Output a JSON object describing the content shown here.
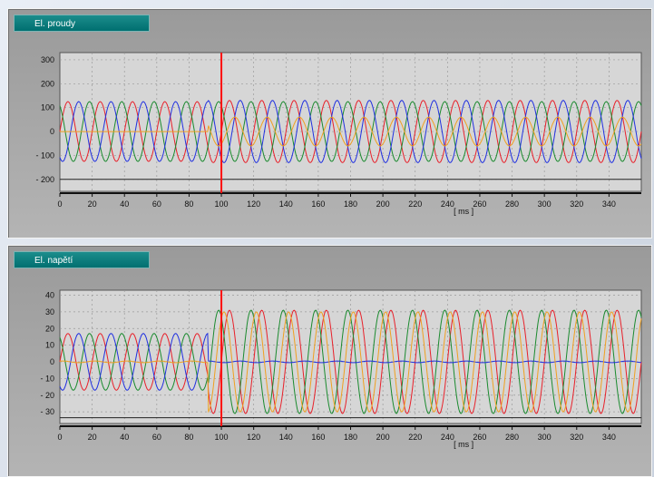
{
  "chart_data": [
    {
      "type": "line",
      "title": "El. proudy",
      "xlabel": "[ ms ]",
      "ylabel": "",
      "xlim": [
        0,
        360
      ],
      "ylim": [
        -250,
        330
      ],
      "x_ticks": [
        0,
        20,
        40,
        60,
        80,
        100,
        120,
        140,
        160,
        180,
        200,
        220,
        240,
        260,
        280,
        300,
        320,
        340
      ],
      "y_ticks": [
        300,
        200,
        100,
        0,
        -100,
        -200
      ],
      "y_tick_labels": [
        "300",
        "200",
        "100",
        "0",
        "- 100",
        "- 200"
      ],
      "marker_x": 100,
      "reference_line_y": -200,
      "grid": true,
      "series": [
        {
          "color": "#e8202a",
          "pre_amp": 125,
          "post_amp": 130,
          "phase_deg": 0
        },
        {
          "color": "#1a8a2e",
          "pre_amp": 125,
          "post_amp": 125,
          "phase_deg": 120
        },
        {
          "color": "#2030e0",
          "pre_amp": 125,
          "post_amp": 130,
          "phase_deg": 240
        },
        {
          "color": "#f0a020",
          "pre_amp": 0,
          "post_amp": 60,
          "phase_deg": 300
        }
      ]
    },
    {
      "type": "line",
      "title": "El. napětí",
      "xlabel": "[ ms ]",
      "ylabel": "",
      "xlim": [
        0,
        360
      ],
      "ylim": [
        -37,
        43
      ],
      "x_ticks": [
        0,
        20,
        40,
        60,
        80,
        100,
        120,
        140,
        160,
        180,
        200,
        220,
        240,
        260,
        280,
        300,
        320,
        340
      ],
      "y_ticks": [
        40,
        30,
        20,
        10,
        0,
        -10,
        -20,
        -30
      ],
      "y_tick_labels": [
        "40",
        "30",
        "20",
        "10",
        "0",
        "- 10",
        "- 20",
        "- 30"
      ],
      "marker_x": 100,
      "reference_line_y": -33.5,
      "grid": true,
      "series": [
        {
          "color": "#e8202a",
          "pre_amp": 17,
          "post_amp": 31,
          "phase_deg": 0
        },
        {
          "color": "#1a8a2e",
          "pre_amp": 17,
          "post_amp": 31,
          "phase_deg": 120
        },
        {
          "color": "#2030e0",
          "pre_amp": 17,
          "post_amp": 0.5,
          "phase_deg": 240
        },
        {
          "color": "#f0a020",
          "pre_amp": 0.5,
          "post_amp": 30,
          "phase_deg": 60
        }
      ]
    }
  ]
}
